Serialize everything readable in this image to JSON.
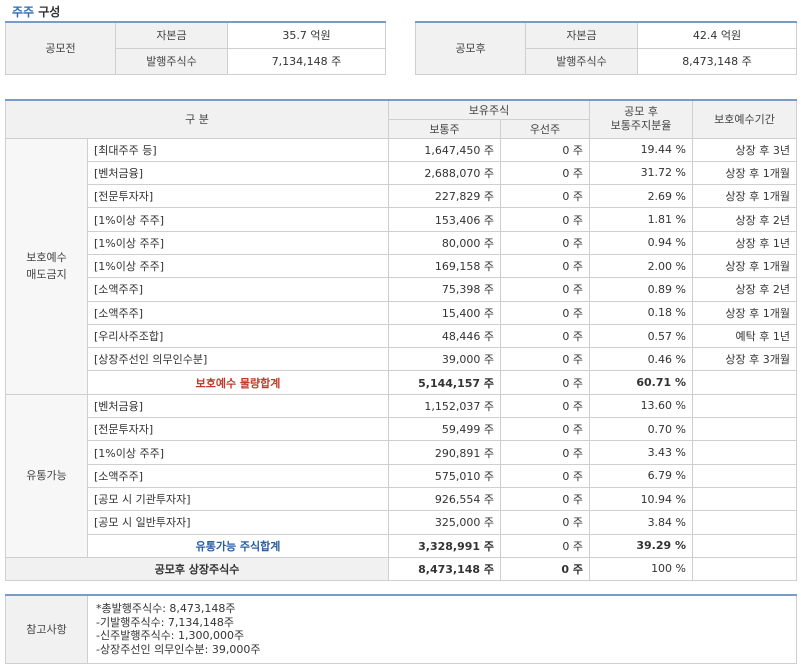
{
  "title": {
    "accent": "주주",
    "rest": " 구성"
  },
  "capital_before": {
    "label": "공모전",
    "capital_label": "자본금",
    "capital_value": "35.7 억원",
    "shares_label": "발행주식수",
    "shares_value": "7,134,148 주"
  },
  "capital_after": {
    "label": "공모후",
    "capital_label": "자본금",
    "capital_value": "42.4 억원",
    "shares_label": "발행주식수",
    "shares_value": "8,473,148 주"
  },
  "headers": {
    "category": "구 분",
    "holdings": "보유주식",
    "common": "보통주",
    "preferred": "우선주",
    "ratio_line1": "공모 후",
    "ratio_line2": "보통주지분율",
    "lockup": "보호예수기간"
  },
  "locked": {
    "group_line1": "보호예수",
    "group_line2": "매도금지",
    "rows": [
      {
        "name": "[최대주주 등]",
        "common": "1,647,450 주",
        "preferred": "0 주",
        "ratio": "19.44 %",
        "period": "상장 후 3년"
      },
      {
        "name": "[벤처금융]",
        "common": "2,688,070 주",
        "preferred": "0 주",
        "ratio": "31.72 %",
        "period": "상장 후 1개월"
      },
      {
        "name": "[전문투자자]",
        "common": "227,829 주",
        "preferred": "0 주",
        "ratio": "2.69 %",
        "period": "상장 후 1개월"
      },
      {
        "name": "[1%이상 주주]",
        "common": "153,406 주",
        "preferred": "0 주",
        "ratio": "1.81 %",
        "period": "상장 후 2년"
      },
      {
        "name": "[1%이상 주주]",
        "common": "80,000 주",
        "preferred": "0 주",
        "ratio": "0.94 %",
        "period": "상장 후 1년"
      },
      {
        "name": "[1%이상 주주]",
        "common": "169,158 주",
        "preferred": "0 주",
        "ratio": "2.00 %",
        "period": "상장 후 1개월"
      },
      {
        "name": "[소액주주]",
        "common": "75,398 주",
        "preferred": "0 주",
        "ratio": "0.89 %",
        "period": "상장 후 2년"
      },
      {
        "name": "[소액주주]",
        "common": "15,400 주",
        "preferred": "0 주",
        "ratio": "0.18 %",
        "period": "상장 후 1개월"
      },
      {
        "name": "[우리사주조합]",
        "common": "48,446 주",
        "preferred": "0 주",
        "ratio": "0.57 %",
        "period": "예탁 후 1년"
      },
      {
        "name": "[상장주선인 의무인수분]",
        "common": "39,000 주",
        "preferred": "0 주",
        "ratio": "0.46 %",
        "period": "상장 후 3개월"
      }
    ],
    "subtotal": {
      "label": "보호예수 물량합계",
      "common": "5,144,157 주",
      "preferred": "0 주",
      "ratio": "60.71 %"
    }
  },
  "tradable": {
    "group": "유통가능",
    "rows": [
      {
        "name": "[벤처금융]",
        "common": "1,152,037 주",
        "preferred": "0 주",
        "ratio": "13.60 %"
      },
      {
        "name": "[전문투자자]",
        "common": "59,499 주",
        "preferred": "0 주",
        "ratio": "0.70 %"
      },
      {
        "name": "[1%이상 주주]",
        "common": "290,891 주",
        "preferred": "0 주",
        "ratio": "3.43 %"
      },
      {
        "name": "[소액주주]",
        "common": "575,010 주",
        "preferred": "0 주",
        "ratio": "6.79 %"
      },
      {
        "name": "[공모 시 기관투자자]",
        "common": "926,554 주",
        "preferred": "0 주",
        "ratio": "10.94 %"
      },
      {
        "name": "[공모 시 일반투자자]",
        "common": "325,000 주",
        "preferred": "0 주",
        "ratio": "3.84 %"
      }
    ],
    "subtotal": {
      "label": "유통가능 주식합계",
      "common": "3,328,991 주",
      "preferred": "0 주",
      "ratio": "39.29 %"
    }
  },
  "total": {
    "label": "공모후 상장주식수",
    "common": "8,473,148 주",
    "preferred": "0 주",
    "ratio": "100 %"
  },
  "notes": {
    "label": "참고사항",
    "lines": [
      "*총발행주식수: 8,473,148주",
      "-기발행주식수: 7,134,148주",
      "-신주발행주식수: 1,300,000주",
      "-상장주선인 의무인수분: 39,000주"
    ]
  }
}
